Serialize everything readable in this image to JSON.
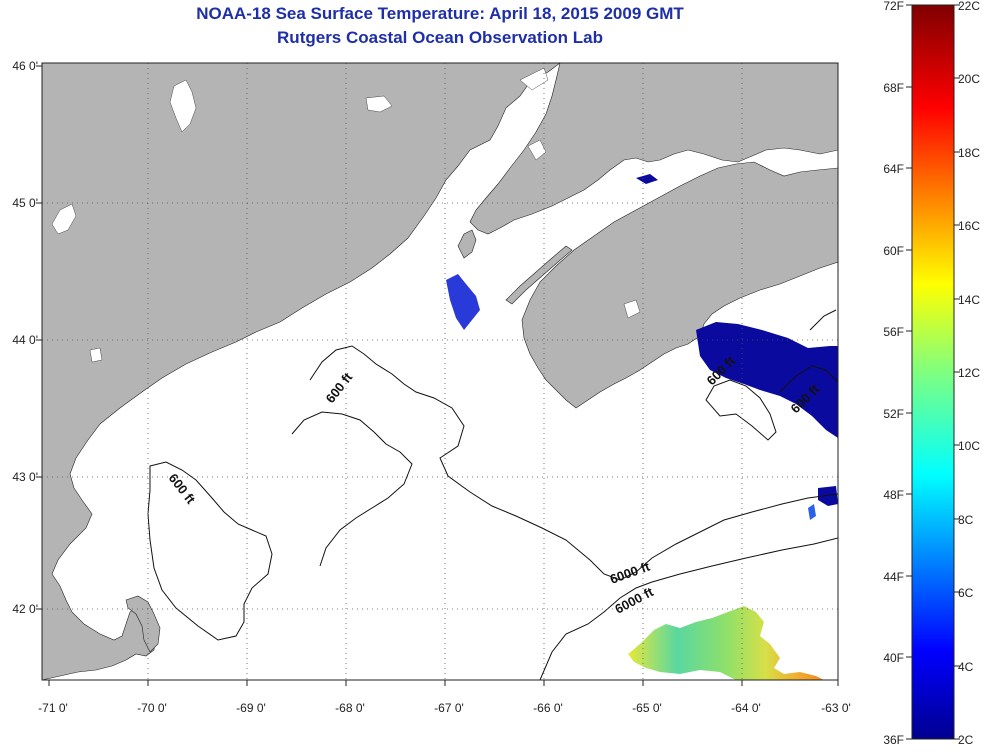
{
  "title": "NOAA-18 Sea Surface Temperature:  April 18, 2015 2009 GMT",
  "subtitle": "Rutgers Coastal Ocean Observation Lab",
  "lon_ticks": [
    "-71 0'",
    "-70 0'",
    "-69 0'",
    "-68 0'",
    "-67 0'",
    "-66 0'",
    "-65 0'",
    "-64 0'",
    "-63 0'"
  ],
  "lat_ticks": [
    "46 0'",
    "45 0'",
    "44 0'",
    "43 0'",
    "42 0'"
  ],
  "contour_labels": [
    "600 ft",
    "600 ft",
    "600 ft",
    "600 ft",
    "6000 ft"
  ],
  "colorbar": {
    "fahrenheit": [
      "72F",
      "68F",
      "64F",
      "60F",
      "56F",
      "52F",
      "48F",
      "44F",
      "40F",
      "36F"
    ],
    "celsius": [
      "22C",
      "20C",
      "18C",
      "16C",
      "14C",
      "12C",
      "10C",
      "8C",
      "6C",
      "4C",
      "2C"
    ]
  },
  "colors": {
    "land": "#b4b4b4",
    "water": "#ffffff",
    "title": "#1f2fa8",
    "cold": "#0a0a9e"
  }
}
